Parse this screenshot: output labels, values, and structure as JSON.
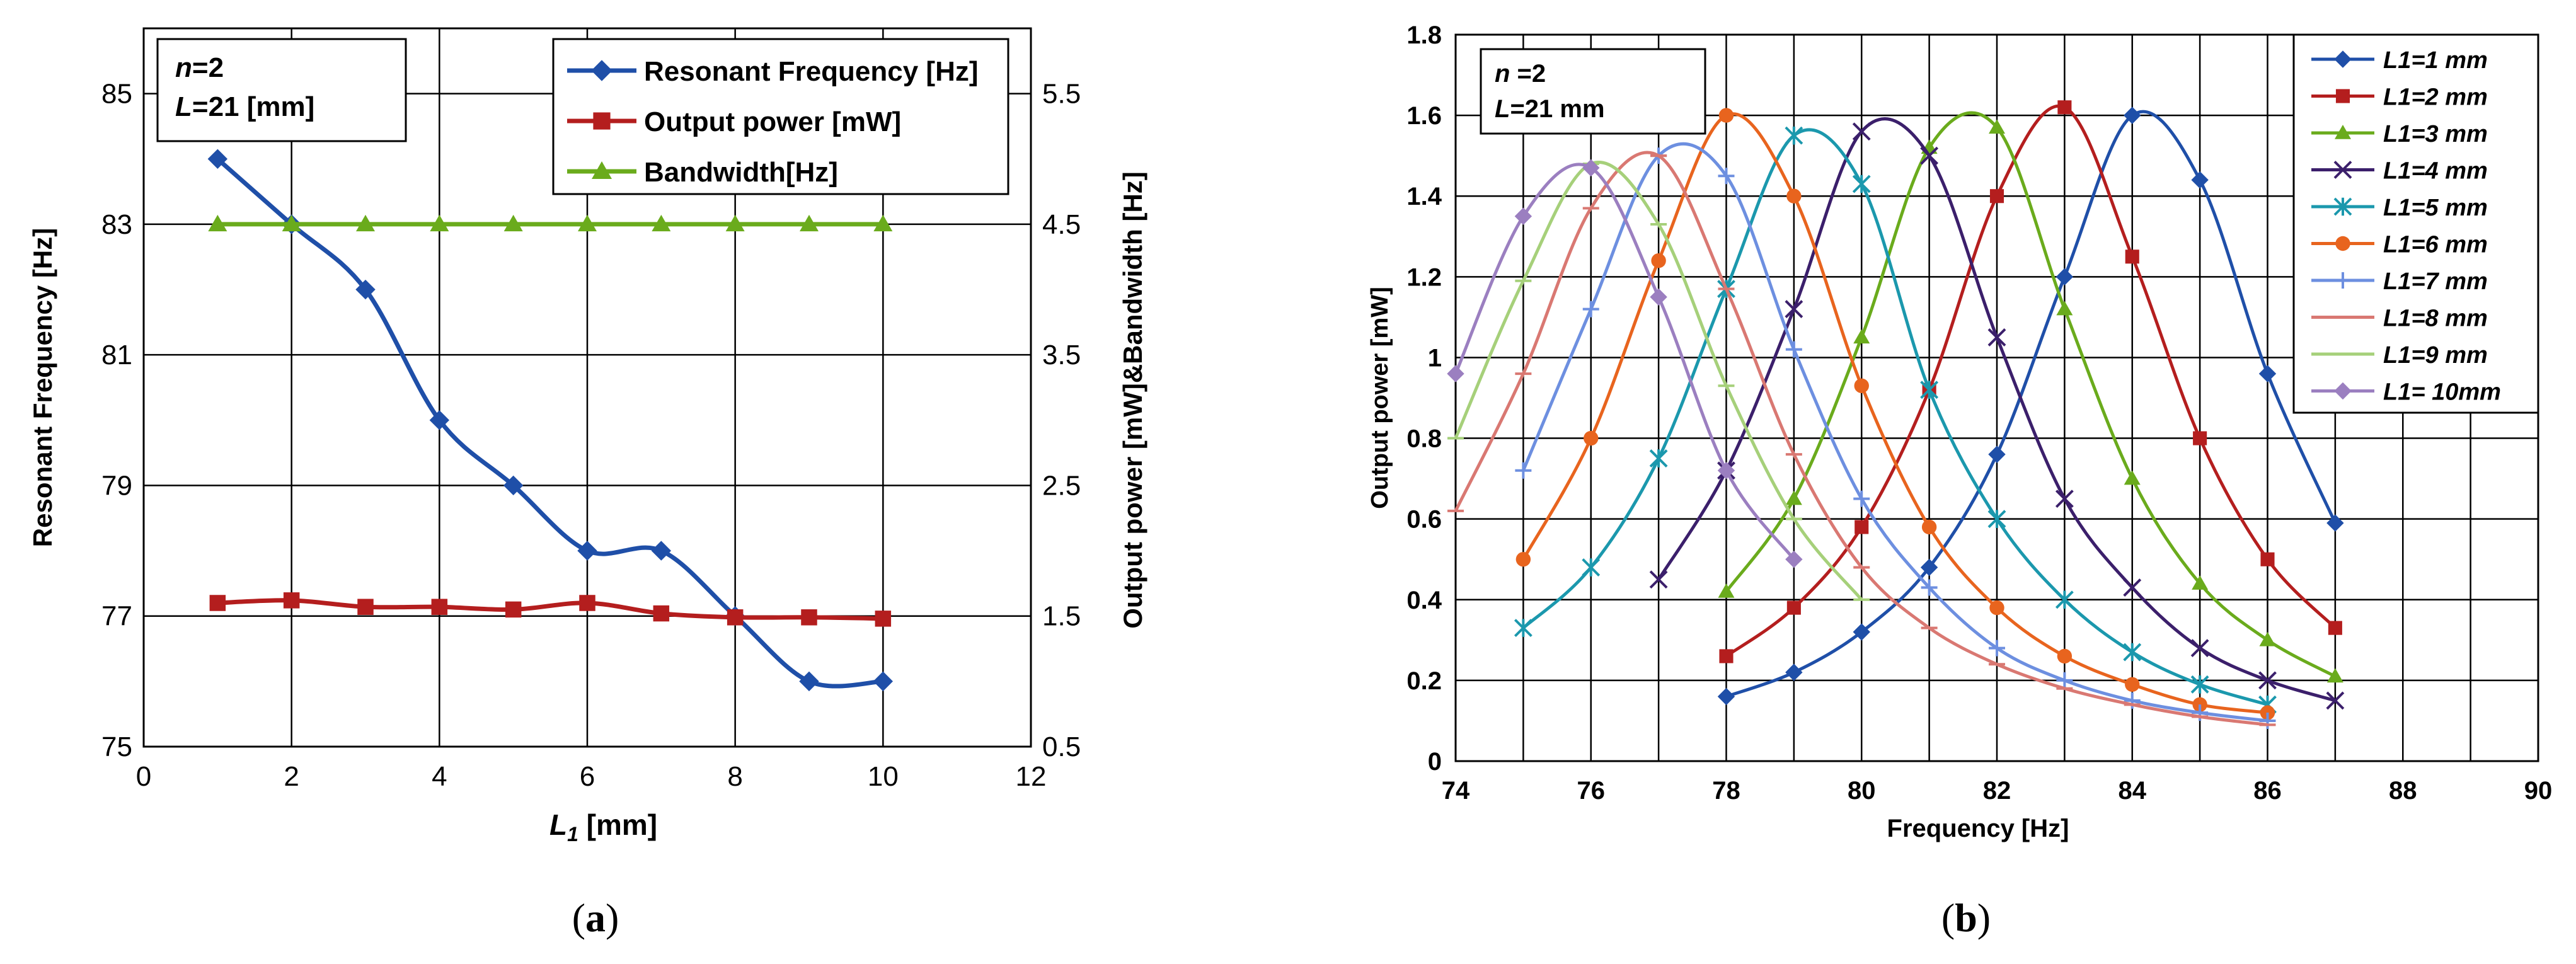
{
  "panel_labels": {
    "a_open": "(",
    "a_letter": "a",
    "a_close": ")",
    "b_open": "(",
    "b_letter": "b",
    "b_close": ")"
  },
  "colors": {
    "blue": "#1f4fa8",
    "red": "#b41e1e",
    "green": "#6aab1c",
    "darkpurple": "#3b1f6b",
    "teal": "#1b98ad",
    "orange": "#e8641e",
    "lightblue": "#6d8fe0",
    "pink": "#d97872",
    "lightgreen": "#a6d07a",
    "lavender": "#9b7fc0"
  },
  "chart_data": [
    {
      "id": "a",
      "type": "line",
      "title": "",
      "xlabel_main": "L",
      "xlabel_sub": "1",
      "xlabel_unit": " [mm]",
      "ylabel_left": "Resonant  Frequency  [Hz]",
      "ylabel_right": "Output power  [mW]&Bandwidth  [Hz]",
      "xlim": [
        0,
        12
      ],
      "ylim_left": [
        75,
        86
      ],
      "ylim_right": [
        0.5,
        6
      ],
      "x_ticks": [
        "0",
        "2",
        "4",
        "6",
        "8",
        "10",
        "12"
      ],
      "y_ticks_left": [
        "75",
        "77",
        "79",
        "81",
        "83",
        "85"
      ],
      "y_ticks_right": [
        "0.5",
        "1.5",
        "2.5",
        "3.5",
        "4.5",
        "5.5"
      ],
      "annotation_lines": [
        {
          "label": "n",
          "value": "=2"
        },
        {
          "label": "L",
          "value": "=21 [mm]"
        }
      ],
      "legend_position": "top-right",
      "series": [
        {
          "name": "Resonant Frequency  [Hz]",
          "axis": "left",
          "marker": "diamond",
          "color": "#1f4fa8",
          "x": [
            1,
            2,
            3,
            4,
            5,
            6,
            7,
            8,
            9,
            10
          ],
          "y": [
            84,
            83,
            82,
            80,
            79,
            78,
            78,
            77,
            76,
            76
          ]
        },
        {
          "name": "Output power  [mW]",
          "axis": "right",
          "marker": "square",
          "color": "#b41e1e",
          "x": [
            1,
            2,
            3,
            4,
            5,
            6,
            7,
            8,
            9,
            10
          ],
          "y": [
            1.6,
            1.62,
            1.57,
            1.57,
            1.55,
            1.6,
            1.52,
            1.49,
            1.49,
            1.48
          ]
        },
        {
          "name": "Bandwidth[Hz]",
          "axis": "right",
          "marker": "triangle",
          "color": "#6aab1c",
          "x": [
            1,
            2,
            3,
            4,
            5,
            6,
            7,
            8,
            9,
            10
          ],
          "y": [
            4.5,
            4.5,
            4.5,
            4.5,
            4.5,
            4.5,
            4.5,
            4.5,
            4.5,
            4.5
          ]
        }
      ]
    },
    {
      "id": "b",
      "type": "line",
      "title": "",
      "xlabel": "Frequency [Hz]",
      "ylabel": "Output power [mW]",
      "xlim": [
        74,
        90
      ],
      "ylim": [
        0,
        1.8
      ],
      "x_ticks": [
        "74",
        "76",
        "78",
        "80",
        "82",
        "84",
        "86",
        "88",
        "90"
      ],
      "y_ticks": [
        "0",
        "0.2",
        "0.4",
        "0.6",
        "0.8",
        "1",
        "1.2",
        "1.4",
        "1.6",
        "1.8"
      ],
      "annotation_lines": [
        {
          "label": "n",
          "value": " =2"
        },
        {
          "label": "L",
          "value": "=21 mm"
        }
      ],
      "legend_position": "top-right",
      "series": [
        {
          "name": "L1=1 mm",
          "marker": "diamond",
          "color": "#1f4fa8",
          "x": [
            78,
            79,
            80,
            81,
            82,
            83,
            84,
            85,
            86,
            87
          ],
          "y": [
            0.16,
            0.22,
            0.32,
            0.48,
            0.76,
            1.2,
            1.6,
            1.44,
            0.96,
            0.59
          ]
        },
        {
          "name": "L1=2 mm",
          "marker": "square",
          "color": "#b41e1e",
          "x": [
            78,
            79,
            80,
            81,
            82,
            83,
            84,
            85,
            86,
            87
          ],
          "y": [
            0.26,
            0.38,
            0.58,
            0.92,
            1.4,
            1.62,
            1.25,
            0.8,
            0.5,
            0.33
          ]
        },
        {
          "name": "L1=3 mm",
          "marker": "triangle",
          "color": "#6aab1c",
          "x": [
            78,
            79,
            80,
            81,
            82,
            83,
            84,
            85,
            86,
            87
          ],
          "y": [
            0.42,
            0.65,
            1.05,
            1.52,
            1.57,
            1.12,
            0.7,
            0.44,
            0.3,
            0.21
          ]
        },
        {
          "name": "L1=4 mm",
          "marker": "x",
          "color": "#3b1f6b",
          "x": [
            77,
            78,
            79,
            80,
            81,
            82,
            83,
            84,
            85,
            86,
            87
          ],
          "y": [
            0.45,
            0.72,
            1.12,
            1.56,
            1.5,
            1.05,
            0.65,
            0.43,
            0.28,
            0.2,
            0.15
          ]
        },
        {
          "name": "L1=5 mm",
          "marker": "star",
          "color": "#1b98ad",
          "x": [
            75,
            76,
            77,
            78,
            79,
            80,
            81,
            82,
            83,
            84,
            85,
            86
          ],
          "y": [
            0.33,
            0.48,
            0.75,
            1.17,
            1.55,
            1.43,
            0.92,
            0.6,
            0.4,
            0.27,
            0.19,
            0.14
          ]
        },
        {
          "name": "L1=6 mm",
          "marker": "circle",
          "color": "#e8641e",
          "x": [
            75,
            76,
            77,
            78,
            79,
            80,
            81,
            82,
            83,
            84,
            85,
            86
          ],
          "y": [
            0.5,
            0.8,
            1.24,
            1.6,
            1.4,
            0.93,
            0.58,
            0.38,
            0.26,
            0.19,
            0.14,
            0.12
          ]
        },
        {
          "name": "L1=7 mm",
          "marker": "plus",
          "color": "#6d8fe0",
          "x": [
            75,
            76,
            77,
            78,
            79,
            80,
            81,
            82,
            83,
            84,
            85,
            86
          ],
          "y": [
            0.72,
            1.12,
            1.5,
            1.45,
            1.02,
            0.65,
            0.43,
            0.28,
            0.2,
            0.15,
            0.12,
            0.1
          ]
        },
        {
          "name": "L1=8 mm",
          "marker": "dash",
          "color": "#d97872",
          "x": [
            74,
            75,
            76,
            77,
            78,
            79,
            80,
            81,
            82,
            83,
            84,
            85,
            86
          ],
          "y": [
            0.62,
            0.96,
            1.37,
            1.5,
            1.17,
            0.76,
            0.48,
            0.33,
            0.24,
            0.18,
            0.14,
            0.11,
            0.09
          ]
        },
        {
          "name": "L1=9 mm",
          "marker": "dash",
          "color": "#a6d07a",
          "x": [
            74,
            75,
            76,
            77,
            78,
            79,
            80
          ],
          "y": [
            0.8,
            1.19,
            1.48,
            1.33,
            0.93,
            0.6,
            0.4
          ]
        },
        {
          "name": "L1= 10mm",
          "marker": "diamond",
          "color": "#9b7fc0",
          "x": [
            74,
            75,
            76,
            77,
            78,
            79
          ],
          "y": [
            0.96,
            1.35,
            1.47,
            1.15,
            0.72,
            0.5
          ]
        }
      ]
    }
  ]
}
